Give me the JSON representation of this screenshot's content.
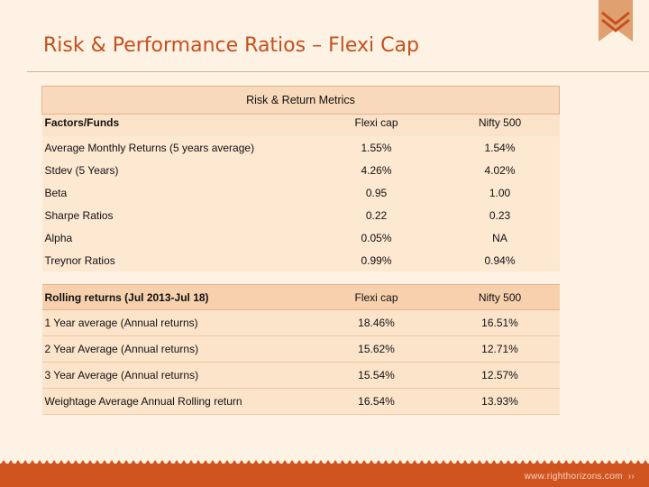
{
  "page": {
    "title": "Risk & Performance Ratios – Flexi Cap",
    "accent_color": "#c5501e",
    "bar_color": "#d0541f",
    "footer_url": "www.righthorizons.com",
    "footer_arrows": "››",
    "bookmark_icon": "ribbon-bookmark-icon"
  },
  "metrics": {
    "caption": "Risk & Return Metrics",
    "header": [
      "Factors/Funds",
      "Flexi cap",
      "Nifty 500"
    ],
    "rows": [
      [
        "Average Monthly Returns (5 years average)",
        "1.55%",
        "1.54%"
      ],
      [
        "Stdev (5 Years)",
        "4.26%",
        "4.02%"
      ],
      [
        "Beta",
        "0.95",
        "1.00"
      ],
      [
        "Sharpe Ratios",
        "0.22",
        "0.23"
      ],
      [
        "Alpha",
        "0.05%",
        "NA"
      ],
      [
        "Treynor Ratios",
        "0.99%",
        "0.94%"
      ]
    ]
  },
  "rolling": {
    "header": [
      "Rolling returns (Jul 2013-Jul 18)",
      "Flexi cap",
      "Nifty 500"
    ],
    "rows": [
      [
        "1 Year average (Annual returns)",
        "18.46%",
        "16.51%"
      ],
      [
        "2 Year Average (Annual returns)",
        "15.62%",
        "12.71%"
      ],
      [
        "3 Year Average (Annual returns)",
        "15.54%",
        "12.57%"
      ],
      [
        "Weightage Average Annual Rolling return",
        "16.54%",
        "13.93%"
      ]
    ]
  }
}
